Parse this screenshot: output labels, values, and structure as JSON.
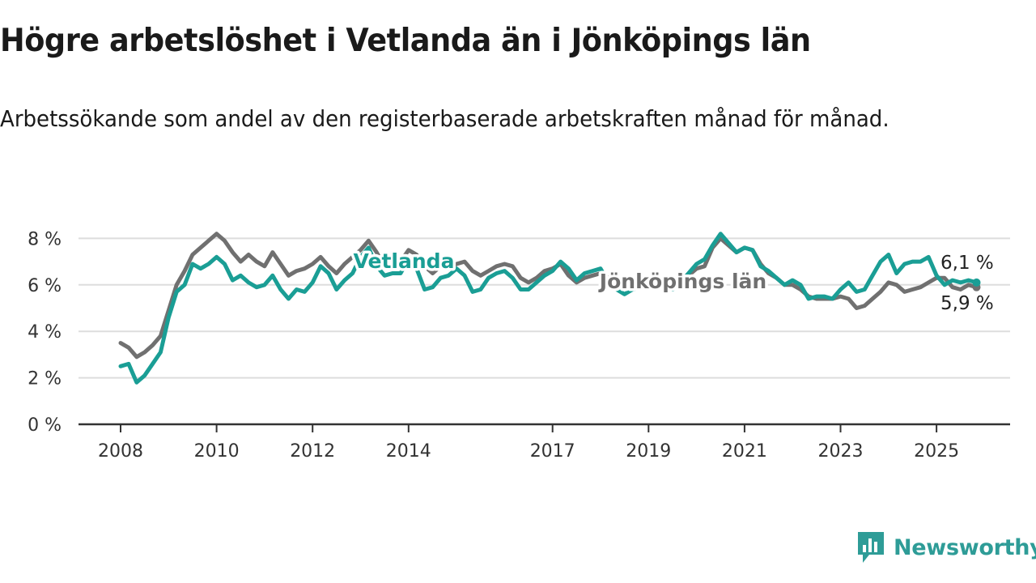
{
  "title": "Högre arbetslöshet i Vetlanda än i Jönköpings län",
  "subtitle": "Arbetssökande som andel av den registerbaserade arbetskraften månad för månad.",
  "brand": "Newsworthy",
  "colors": {
    "vetlanda": "#1a9e95",
    "jonkoping": "#707070",
    "grid": "#dddddd",
    "axis": "#333333",
    "brand": "#2e9c97"
  },
  "icons": {
    "brand_logo": "bar-chart-icon"
  },
  "chart_data": {
    "type": "line",
    "ylim": [
      0,
      8
    ],
    "y_ticks": [
      0,
      2,
      4,
      6,
      8
    ],
    "y_tick_labels": [
      "0 %",
      "2 %",
      "4 %",
      "6 %",
      "8 %"
    ],
    "x_range": [
      "2008-01",
      "2025-11"
    ],
    "x_ticks": [
      2008,
      2010,
      2012,
      2014,
      2017,
      2019,
      2021,
      2023,
      2025
    ],
    "x_tick_labels": [
      "2008",
      "2010",
      "2012",
      "2014",
      "2017",
      "2019",
      "2021",
      "2023",
      "2025"
    ],
    "grid": true,
    "series": [
      {
        "name": "Jönköpings län",
        "color": "#707070",
        "points": [
          [
            "2008-01",
            3.5
          ],
          [
            "2008-03",
            3.3
          ],
          [
            "2008-05",
            2.9
          ],
          [
            "2008-07",
            3.1
          ],
          [
            "2008-09",
            3.4
          ],
          [
            "2008-11",
            3.8
          ],
          [
            "2009-01",
            4.9
          ],
          [
            "2009-03",
            6.0
          ],
          [
            "2009-05",
            6.6
          ],
          [
            "2009-07",
            7.3
          ],
          [
            "2009-09",
            7.6
          ],
          [
            "2009-11",
            7.9
          ],
          [
            "2010-01",
            8.2
          ],
          [
            "2010-03",
            7.9
          ],
          [
            "2010-05",
            7.4
          ],
          [
            "2010-07",
            7.0
          ],
          [
            "2010-09",
            7.3
          ],
          [
            "2010-11",
            7.0
          ],
          [
            "2011-01",
            6.8
          ],
          [
            "2011-03",
            7.4
          ],
          [
            "2011-05",
            6.9
          ],
          [
            "2011-07",
            6.4
          ],
          [
            "2011-09",
            6.6
          ],
          [
            "2011-11",
            6.7
          ],
          [
            "2012-01",
            6.9
          ],
          [
            "2012-03",
            7.2
          ],
          [
            "2012-05",
            6.8
          ],
          [
            "2012-07",
            6.5
          ],
          [
            "2012-09",
            6.9
          ],
          [
            "2012-11",
            7.2
          ],
          [
            "2013-01",
            7.5
          ],
          [
            "2013-03",
            7.9
          ],
          [
            "2013-05",
            7.4
          ],
          [
            "2013-07",
            6.8
          ],
          [
            "2013-09",
            6.7
          ],
          [
            "2013-11",
            7.0
          ],
          [
            "2014-01",
            7.5
          ],
          [
            "2014-03",
            7.3
          ],
          [
            "2014-05",
            6.8
          ],
          [
            "2014-07",
            6.5
          ],
          [
            "2014-09",
            6.8
          ],
          [
            "2014-11",
            6.7
          ],
          [
            "2015-01",
            6.9
          ],
          [
            "2015-03",
            7.0
          ],
          [
            "2015-05",
            6.6
          ],
          [
            "2015-07",
            6.4
          ],
          [
            "2015-09",
            6.6
          ],
          [
            "2015-11",
            6.8
          ],
          [
            "2016-01",
            6.9
          ],
          [
            "2016-03",
            6.8
          ],
          [
            "2016-05",
            6.3
          ],
          [
            "2016-07",
            6.1
          ],
          [
            "2016-09",
            6.3
          ],
          [
            "2016-11",
            6.6
          ],
          [
            "2017-01",
            6.7
          ],
          [
            "2017-03",
            6.9
          ],
          [
            "2017-05",
            6.4
          ],
          [
            "2017-07",
            6.1
          ],
          [
            "2017-09",
            6.3
          ],
          [
            "2017-11",
            6.4
          ],
          [
            "2018-01",
            6.5
          ],
          [
            "2018-03",
            6.3
          ],
          [
            "2018-05",
            6.0
          ],
          [
            "2018-07",
            5.9
          ],
          [
            "2018-09",
            6.0
          ],
          [
            "2018-11",
            6.1
          ],
          [
            "2019-01",
            6.2
          ],
          [
            "2019-03",
            6.3
          ],
          [
            "2019-05",
            6.1
          ],
          [
            "2019-07",
            6.0
          ],
          [
            "2019-09",
            6.2
          ],
          [
            "2019-11",
            6.4
          ],
          [
            "2020-01",
            6.7
          ],
          [
            "2020-03",
            6.8
          ],
          [
            "2020-05",
            7.6
          ],
          [
            "2020-07",
            8.0
          ],
          [
            "2020-09",
            7.7
          ],
          [
            "2020-11",
            7.4
          ],
          [
            "2021-01",
            7.6
          ],
          [
            "2021-03",
            7.5
          ],
          [
            "2021-05",
            6.9
          ],
          [
            "2021-07",
            6.5
          ],
          [
            "2021-09",
            6.3
          ],
          [
            "2021-11",
            6.0
          ],
          [
            "2022-01",
            6.0
          ],
          [
            "2022-03",
            5.8
          ],
          [
            "2022-05",
            5.5
          ],
          [
            "2022-07",
            5.4
          ],
          [
            "2022-09",
            5.4
          ],
          [
            "2022-11",
            5.4
          ],
          [
            "2023-01",
            5.5
          ],
          [
            "2023-03",
            5.4
          ],
          [
            "2023-05",
            5.0
          ],
          [
            "2023-07",
            5.1
          ],
          [
            "2023-09",
            5.4
          ],
          [
            "2023-11",
            5.7
          ],
          [
            "2024-01",
            6.1
          ],
          [
            "2024-03",
            6.0
          ],
          [
            "2024-05",
            5.7
          ],
          [
            "2024-07",
            5.8
          ],
          [
            "2024-09",
            5.9
          ],
          [
            "2024-11",
            6.1
          ],
          [
            "2025-01",
            6.3
          ],
          [
            "2025-03",
            6.3
          ],
          [
            "2025-05",
            5.9
          ],
          [
            "2025-07",
            5.8
          ],
          [
            "2025-09",
            6.0
          ],
          [
            "2025-11",
            5.9
          ]
        ]
      },
      {
        "name": "Vetlanda",
        "color": "#1a9e95",
        "points": [
          [
            "2008-01",
            2.5
          ],
          [
            "2008-03",
            2.6
          ],
          [
            "2008-05",
            1.8
          ],
          [
            "2008-07",
            2.1
          ],
          [
            "2008-09",
            2.6
          ],
          [
            "2008-11",
            3.1
          ],
          [
            "2009-01",
            4.6
          ],
          [
            "2009-03",
            5.7
          ],
          [
            "2009-05",
            6.0
          ],
          [
            "2009-07",
            6.9
          ],
          [
            "2009-09",
            6.7
          ],
          [
            "2009-11",
            6.9
          ],
          [
            "2010-01",
            7.2
          ],
          [
            "2010-03",
            6.9
          ],
          [
            "2010-05",
            6.2
          ],
          [
            "2010-07",
            6.4
          ],
          [
            "2010-09",
            6.1
          ],
          [
            "2010-11",
            5.9
          ],
          [
            "2011-01",
            6.0
          ],
          [
            "2011-03",
            6.4
          ],
          [
            "2011-05",
            5.8
          ],
          [
            "2011-07",
            5.4
          ],
          [
            "2011-09",
            5.8
          ],
          [
            "2011-11",
            5.7
          ],
          [
            "2012-01",
            6.1
          ],
          [
            "2012-03",
            6.8
          ],
          [
            "2012-05",
            6.5
          ],
          [
            "2012-07",
            5.8
          ],
          [
            "2012-09",
            6.2
          ],
          [
            "2012-11",
            6.5
          ],
          [
            "2013-01",
            7.2
          ],
          [
            "2013-03",
            7.6
          ],
          [
            "2013-05",
            6.8
          ],
          [
            "2013-07",
            6.4
          ],
          [
            "2013-09",
            6.5
          ],
          [
            "2013-11",
            6.5
          ],
          [
            "2014-01",
            7.1
          ],
          [
            "2014-03",
            6.7
          ],
          [
            "2014-05",
            5.8
          ],
          [
            "2014-07",
            5.9
          ],
          [
            "2014-09",
            6.3
          ],
          [
            "2014-11",
            6.4
          ],
          [
            "2015-01",
            6.7
          ],
          [
            "2015-03",
            6.4
          ],
          [
            "2015-05",
            5.7
          ],
          [
            "2015-07",
            5.8
          ],
          [
            "2015-09",
            6.3
          ],
          [
            "2015-11",
            6.5
          ],
          [
            "2016-01",
            6.6
          ],
          [
            "2016-03",
            6.3
          ],
          [
            "2016-05",
            5.8
          ],
          [
            "2016-07",
            5.8
          ],
          [
            "2016-09",
            6.1
          ],
          [
            "2016-11",
            6.4
          ],
          [
            "2017-01",
            6.6
          ],
          [
            "2017-03",
            7.0
          ],
          [
            "2017-05",
            6.7
          ],
          [
            "2017-07",
            6.2
          ],
          [
            "2017-09",
            6.5
          ],
          [
            "2017-11",
            6.6
          ],
          [
            "2018-01",
            6.7
          ],
          [
            "2018-03",
            6.1
          ],
          [
            "2018-05",
            5.8
          ],
          [
            "2018-07",
            5.6
          ],
          [
            "2018-09",
            5.8
          ],
          [
            "2018-11",
            5.9
          ],
          [
            "2019-01",
            6.0
          ],
          [
            "2019-03",
            6.3
          ],
          [
            "2019-05",
            6.0
          ],
          [
            "2019-07",
            5.8
          ],
          [
            "2019-09",
            6.1
          ],
          [
            "2019-11",
            6.5
          ],
          [
            "2020-01",
            6.9
          ],
          [
            "2020-03",
            7.1
          ],
          [
            "2020-05",
            7.7
          ],
          [
            "2020-07",
            8.2
          ],
          [
            "2020-09",
            7.8
          ],
          [
            "2020-11",
            7.4
          ],
          [
            "2021-01",
            7.6
          ],
          [
            "2021-03",
            7.5
          ],
          [
            "2021-05",
            6.8
          ],
          [
            "2021-07",
            6.6
          ],
          [
            "2021-09",
            6.3
          ],
          [
            "2021-11",
            6.0
          ],
          [
            "2022-01",
            6.2
          ],
          [
            "2022-03",
            6.0
          ],
          [
            "2022-05",
            5.4
          ],
          [
            "2022-07",
            5.5
          ],
          [
            "2022-09",
            5.5
          ],
          [
            "2022-11",
            5.4
          ],
          [
            "2023-01",
            5.8
          ],
          [
            "2023-03",
            6.1
          ],
          [
            "2023-05",
            5.7
          ],
          [
            "2023-07",
            5.8
          ],
          [
            "2023-09",
            6.4
          ],
          [
            "2023-11",
            7.0
          ],
          [
            "2024-01",
            7.3
          ],
          [
            "2024-03",
            6.5
          ],
          [
            "2024-05",
            6.9
          ],
          [
            "2024-07",
            7.0
          ],
          [
            "2024-09",
            7.0
          ],
          [
            "2024-11",
            7.2
          ],
          [
            "2025-01",
            6.4
          ],
          [
            "2025-03",
            6.0
          ],
          [
            "2025-05",
            6.2
          ],
          [
            "2025-07",
            6.1
          ],
          [
            "2025-09",
            6.2
          ],
          [
            "2025-11",
            6.1
          ]
        ]
      }
    ],
    "series_labels": [
      "Vetlanda",
      "Jönköpings län"
    ],
    "end_labels": {
      "vetlanda": "6,1 %",
      "jonkoping": "5,9 %"
    }
  }
}
